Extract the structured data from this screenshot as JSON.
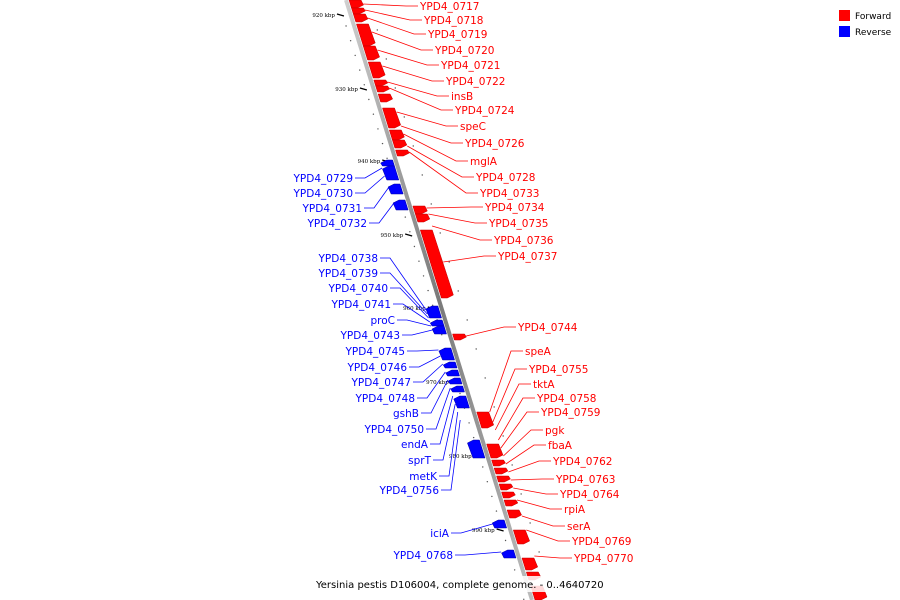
{
  "legend": {
    "items": [
      {
        "label": "Forward",
        "color": "#ff0000"
      },
      {
        "label": "Reverse",
        "color": "#0000ff"
      }
    ]
  },
  "caption": "Yersinia pestis D106004, complete genome. - 0..4640720",
  "colors": {
    "forward": "#ff0000",
    "reverse": "#0000ff",
    "axis": "#999999"
  },
  "ticks": [
    {
      "kbp": 920,
      "label": "920 kbp"
    },
    {
      "kbp": 930,
      "label": "930 kbp"
    },
    {
      "kbp": 940,
      "label": "940 kbp"
    },
    {
      "kbp": 950,
      "label": "950 kbp"
    },
    {
      "kbp": 960,
      "label": "960 kbp"
    },
    {
      "kbp": 970,
      "label": "970 kbp"
    },
    {
      "kbp": 980,
      "label": "980 kbp"
    },
    {
      "kbp": 990,
      "label": "990 kbp"
    }
  ],
  "forward_labels": [
    "YPD4_0717",
    "YPD4_0718",
    "YPD4_0719",
    "YPD4_0720",
    "YPD4_0721",
    "YPD4_0722",
    "insB",
    "YPD4_0724",
    "speC",
    "YPD4_0726",
    "mglA",
    "YPD4_0728",
    "YPD4_0733",
    "YPD4_0734",
    "YPD4_0735",
    "YPD4_0736",
    "YPD4_0737",
    "YPD4_0744",
    "speA",
    "YPD4_0755",
    "tktA",
    "YPD4_0758",
    "YPD4_0759",
    "pgk",
    "fbaA",
    "YPD4_0762",
    "YPD4_0763",
    "YPD4_0764",
    "rpiA",
    "serA",
    "YPD4_0769",
    "YPD4_0770"
  ],
  "reverse_labels": [
    "YPD4_0729",
    "YPD4_0730",
    "YPD4_0731",
    "YPD4_0732",
    "YPD4_0738",
    "YPD4_0739",
    "YPD4_0740",
    "YPD4_0741",
    "proC",
    "YPD4_0743",
    "YPD4_0745",
    "YPD4_0746",
    "YPD4_0747",
    "YPD4_0748",
    "gshB",
    "YPD4_0750",
    "endA",
    "sprT",
    "metK",
    "YPD4_0756",
    "iciA",
    "YPD4_0768"
  ]
}
